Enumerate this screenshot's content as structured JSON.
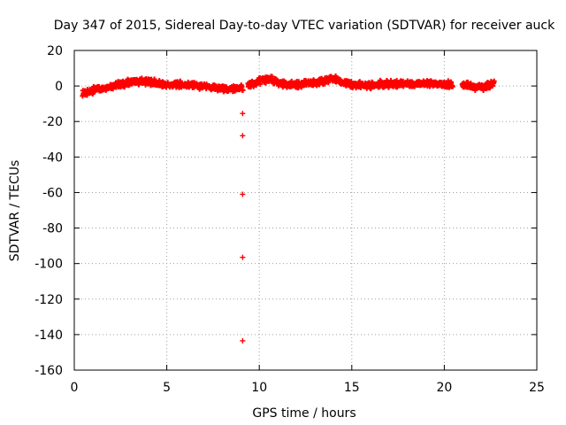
{
  "chart_data": {
    "type": "scatter",
    "title": "Day 347 of 2015, Sidereal Day-to-day VTEC variation (SDTVAR) for receiver auck",
    "xlabel": "GPS time / hours",
    "ylabel": "SDTVAR / TECUs",
    "xlim": [
      0,
      25
    ],
    "ylim": [
      -160,
      20
    ],
    "xticks": [
      0,
      5,
      10,
      15,
      20,
      25
    ],
    "yticks": [
      20,
      0,
      -20,
      -40,
      -60,
      -80,
      -100,
      -120,
      -140,
      -160
    ],
    "grid": true,
    "marker": "+",
    "color": "#ff0000",
    "series": [
      {
        "name": "SDTVAR",
        "trend": [
          [
            0.45,
            -3.5
          ],
          [
            0.7,
            -4
          ],
          [
            1,
            -2.5
          ],
          [
            1.5,
            -1.5
          ],
          [
            2,
            0
          ],
          [
            2.5,
            1
          ],
          [
            3,
            2
          ],
          [
            3.5,
            2.5
          ],
          [
            4,
            2.5
          ],
          [
            4.5,
            1.5
          ],
          [
            5,
            0.5
          ],
          [
            5.5,
            1
          ],
          [
            6,
            0.5
          ],
          [
            6.5,
            0.5
          ],
          [
            7,
            -0.5
          ],
          [
            7.5,
            -1
          ],
          [
            8,
            -1.5
          ],
          [
            8.5,
            -1.5
          ],
          [
            9,
            -1
          ],
          [
            9.1,
            -1.2
          ],
          [
            9.4,
            0.5
          ],
          [
            9.7,
            1
          ],
          [
            10,
            3
          ],
          [
            10.3,
            3.5
          ],
          [
            10.6,
            3.5
          ],
          [
            11,
            2
          ],
          [
            11.5,
            1
          ],
          [
            12,
            0.5
          ],
          [
            12.5,
            1.5
          ],
          [
            13,
            2
          ],
          [
            13.5,
            3
          ],
          [
            14,
            4
          ],
          [
            14.3,
            3
          ],
          [
            14.6,
            1.5
          ],
          [
            15,
            0.5
          ],
          [
            15.5,
            0.5
          ],
          [
            16,
            0.5
          ],
          [
            16.5,
            1
          ],
          [
            17,
            1
          ],
          [
            17.5,
            1.5
          ],
          [
            18,
            1.5
          ],
          [
            18.5,
            1.5
          ],
          [
            19,
            1.5
          ],
          [
            19.5,
            1
          ],
          [
            20,
            1
          ],
          [
            20.4,
            0.5
          ],
          [
            21,
            0.5
          ],
          [
            21.3,
            1
          ],
          [
            21.6,
            -0.5
          ],
          [
            22,
            -0.5
          ],
          [
            22.3,
            0
          ],
          [
            22.7,
            1
          ]
        ],
        "outliers": [
          [
            9.1,
            -15.5
          ],
          [
            9.1,
            -28
          ],
          [
            9.1,
            -61
          ],
          [
            9.1,
            -96.5
          ],
          [
            9.1,
            -143.5
          ]
        ]
      }
    ]
  }
}
